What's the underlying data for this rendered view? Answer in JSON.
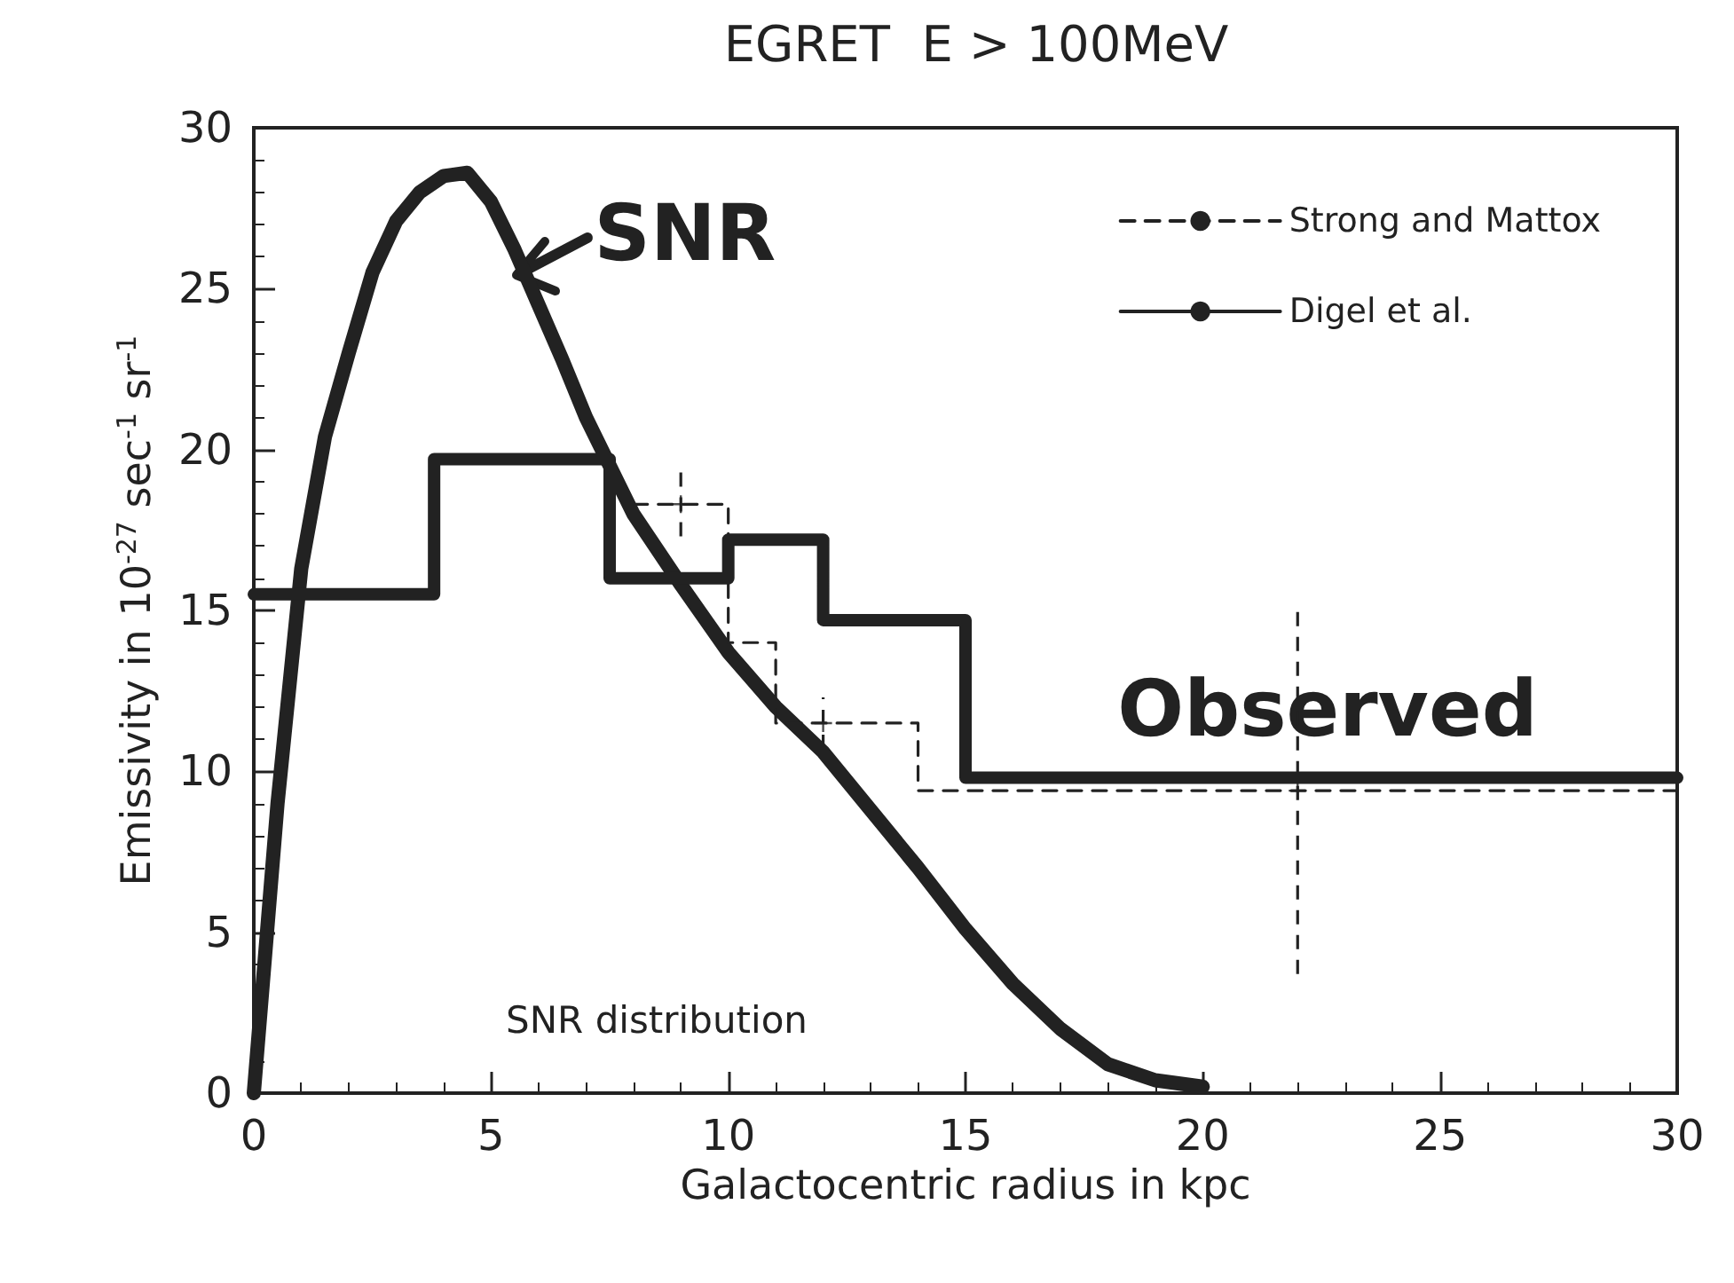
{
  "chart_data": {
    "type": "line",
    "title": "EGRET  E > 100MeV",
    "xlabel": "Galactocentric radius in kpc",
    "ylabel": "Emissivity in 10$^{-27}$ sec$^{-1}$ sr$^{-1}$",
    "xlim": [
      0,
      30
    ],
    "xticks": [
      0,
      5,
      10,
      15,
      20,
      25,
      30
    ],
    "ylim": [
      0,
      30
    ],
    "yticks": [
      0,
      5,
      10,
      15,
      20,
      25,
      30
    ],
    "grid": false,
    "legend": "top right",
    "marker": "none",
    "series": [
      {
        "color": "#222222",
        "x": [
          0,
          0.5,
          1,
          1.5,
          2,
          2.5,
          3,
          3.5,
          4,
          4.5,
          5,
          5.5,
          6,
          6.5,
          7,
          7.5,
          8,
          9,
          10,
          11,
          12,
          13,
          14,
          15,
          16,
          17,
          18,
          19,
          20
        ],
        "values": [
          0,
          9,
          16.3,
          20.4,
          23,
          25.5,
          27.1,
          28,
          28.5,
          28.6,
          27.7,
          26.2,
          24.5,
          22.8,
          21,
          19.5,
          18,
          15.8,
          13.7,
          12,
          10.6,
          8.8,
          7,
          5.1,
          3.4,
          2,
          0.9,
          0.4,
          0.2
        ]
      },
      {
        "name": "Strong and Mattox",
        "type": "step",
        "line_style": "dashed",
        "color": "#222222",
        "x": [
          8,
          10,
          11,
          14,
          30
        ],
        "values": [
          18.3,
          14,
          11.5,
          9.4,
          9.4
        ]
      },
      {
        "type": "scatter",
        "marker": "cross",
        "color": "#222222",
        "x": [
          9,
          12,
          22
        ],
        "values": [
          18.3,
          11.5,
          9.4
        ],
        "errors": [
          1,
          [
            10.7,
            12.3
          ],
          5.7
        ]
      },
      {
        "name": "Digel et al.",
        "type": "step",
        "color": "#222222",
        "x": [
          0,
          3.8,
          7.5,
          10,
          12,
          15,
          30
        ],
        "values": [
          15.5,
          19.7,
          16,
          17.2,
          14.7,
          9.8,
          9.8
        ]
      }
    ],
    "annotations": [
      "SNR",
      "Observed",
      "SNR distribution"
    ]
  }
}
